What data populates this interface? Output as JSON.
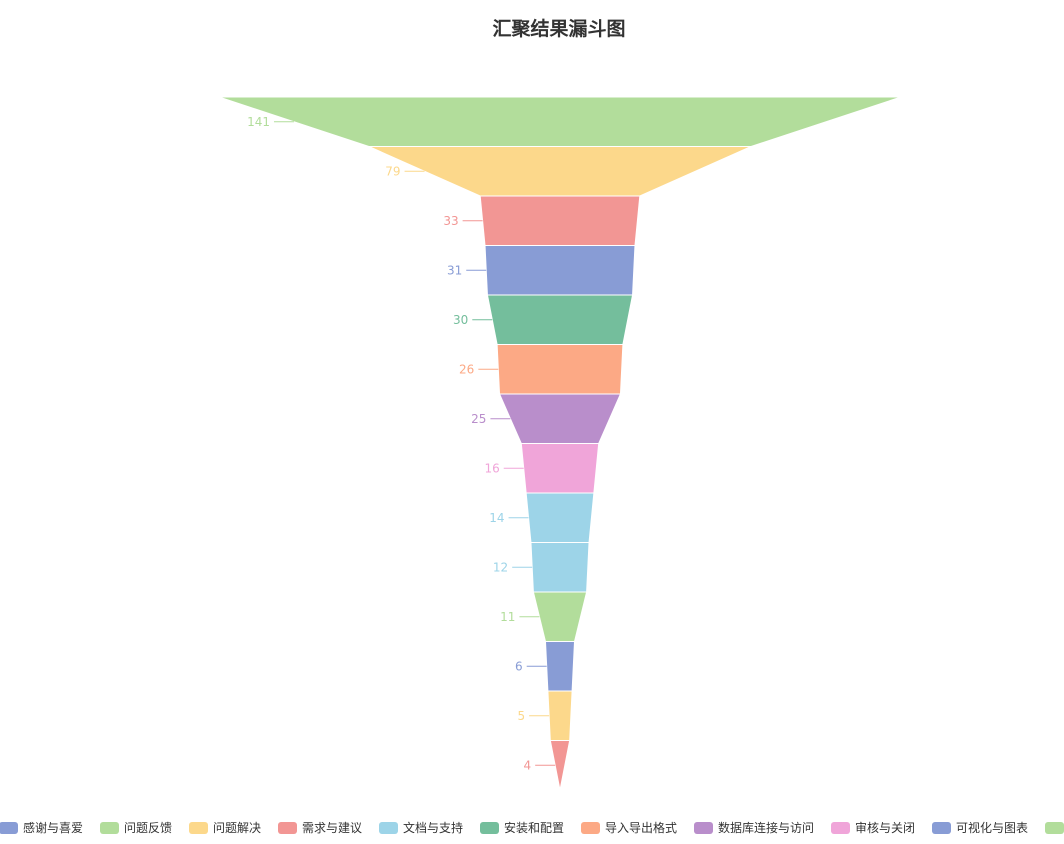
{
  "chart_data": {
    "type": "funnel",
    "title": "汇聚结果漏斗图",
    "stages": [
      {
        "value": 141,
        "color": "#b2dd9b"
      },
      {
        "value": 79,
        "color": "#fcd88b"
      },
      {
        "value": 33,
        "color": "#f29694"
      },
      {
        "value": 31,
        "color": "#889cd5"
      },
      {
        "value": 30,
        "color": "#74be9c"
      },
      {
        "value": 26,
        "color": "#fca985"
      },
      {
        "value": 25,
        "color": "#b98ecb"
      },
      {
        "value": 16,
        "color": "#f0a5d9"
      },
      {
        "value": 14,
        "color": "#9dd4e8"
      },
      {
        "value": 12,
        "color": "#9dd4e8"
      },
      {
        "value": 11,
        "color": "#b2dd9b"
      },
      {
        "value": 6,
        "color": "#889cd5"
      },
      {
        "value": 5,
        "color": "#fcd88b"
      },
      {
        "value": 4,
        "color": "#f29694"
      }
    ],
    "legend": [
      {
        "name": "感谢与喜爱",
        "color": "#889cd5"
      },
      {
        "name": "问题反馈",
        "color": "#b2dd9b"
      },
      {
        "name": "问题解决",
        "color": "#fcd88b"
      },
      {
        "name": "需求与建议",
        "color": "#f29694"
      },
      {
        "name": "文档与支持",
        "color": "#9dd4e8"
      },
      {
        "name": "安装和配置",
        "color": "#74be9c"
      },
      {
        "name": "导入导出格式",
        "color": "#fca985"
      },
      {
        "name": "数据库连接与访问",
        "color": "#b98ecb"
      },
      {
        "name": "审核与关闭",
        "color": "#f0a5d9"
      },
      {
        "name": "可视化与图表",
        "color": "#889cd5"
      },
      {
        "name": "",
        "color": "#b2dd9b"
      }
    ],
    "legend_position": "bottom"
  }
}
